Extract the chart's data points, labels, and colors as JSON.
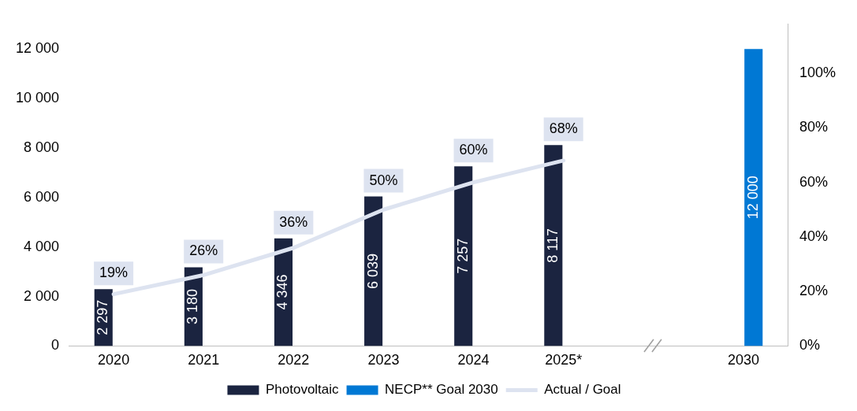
{
  "chart_data": {
    "type": "bar",
    "categories": [
      "2020",
      "2021",
      "2022",
      "2023",
      "2024",
      "2025*",
      null,
      "2030"
    ],
    "series": [
      {
        "name": "Photovoltaic",
        "color": "#1b2440",
        "values": [
          2297,
          3180,
          4346,
          6039,
          7257,
          8117,
          null,
          null
        ],
        "value_labels": [
          "2 297",
          "3 180",
          "4 346",
          "6 039",
          "7 257",
          "8 117",
          null,
          null
        ]
      },
      {
        "name": "NECP** Goal 2030",
        "color": "#0078d4",
        "values": [
          null,
          null,
          null,
          null,
          null,
          null,
          null,
          12000
        ],
        "value_labels": [
          null,
          null,
          null,
          null,
          null,
          null,
          null,
          "12 000"
        ]
      },
      {
        "name": "Actual / Goal",
        "type": "line",
        "axis": "y2",
        "color": "#dde3f0",
        "values": [
          19,
          26,
          36,
          50,
          60,
          68,
          null,
          null
        ],
        "value_labels": [
          "19%",
          "26%",
          "36%",
          "50%",
          "60%",
          "68%",
          null,
          null
        ]
      }
    ],
    "ylim": [
      0,
      13000
    ],
    "yticks": [
      {
        "value": 0,
        "label": "0"
      },
      {
        "value": 2000,
        "label": "2 000"
      },
      {
        "value": 4000,
        "label": "4 000"
      },
      {
        "value": 6000,
        "label": "6 000"
      },
      {
        "value": 8000,
        "label": "8 000"
      },
      {
        "value": 10000,
        "label": "10 000"
      },
      {
        "value": 12000,
        "label": "12 000"
      }
    ],
    "y2lim": [
      0,
      118
    ],
    "y2ticks": [
      {
        "value": 0,
        "label": "0%"
      },
      {
        "value": 20,
        "label": "20%"
      },
      {
        "value": 40,
        "label": "40%"
      },
      {
        "value": 60,
        "label": "60%"
      },
      {
        "value": 80,
        "label": "80%"
      },
      {
        "value": 100,
        "label": "100%"
      }
    ],
    "legend": "bottom",
    "marker": "none"
  }
}
